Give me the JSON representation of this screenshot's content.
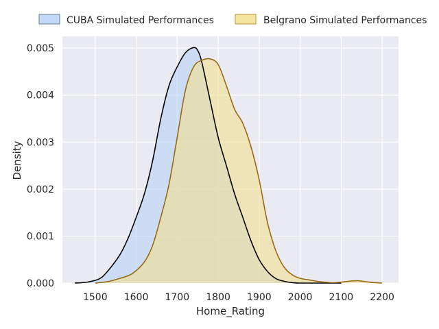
{
  "chart_data": {
    "type": "area",
    "subtype": "kde-density",
    "title": "",
    "xlabel": "Home_Rating",
    "ylabel": "Density",
    "xlim": [
      1420,
      2240
    ],
    "ylim": [
      0,
      0.00525
    ],
    "x_ticks": [
      1500,
      1600,
      1700,
      1800,
      1900,
      2000,
      2100,
      2200
    ],
    "y_ticks": [
      0.0,
      0.001,
      0.002,
      0.003,
      0.004,
      0.005
    ],
    "y_tick_labels": [
      "0.000",
      "0.001",
      "0.002",
      "0.003",
      "0.004",
      "0.005"
    ],
    "grid": true,
    "legend_position": "top",
    "series": [
      {
        "name": "CUBA Simulated Performances",
        "fill_color": "#b7d2f7",
        "line_color": "#000000",
        "x": [
          1450,
          1480,
          1510,
          1530,
          1560,
          1580,
          1600,
          1620,
          1640,
          1660,
          1680,
          1700,
          1720,
          1740,
          1750,
          1760,
          1780,
          1800,
          1820,
          1840,
          1860,
          1880,
          1900,
          1920,
          1940,
          1960,
          1980,
          2000,
          2030,
          2060,
          2100
        ],
        "y": [
          0,
          2e-05,
          9e-05,
          0.00025,
          0.0006,
          0.00095,
          0.0014,
          0.0019,
          0.0026,
          0.0035,
          0.0042,
          0.0046,
          0.0049,
          0.00501,
          0.00495,
          0.0047,
          0.0039,
          0.0031,
          0.0025,
          0.0019,
          0.0014,
          0.0009,
          0.0005,
          0.00025,
          0.0001,
          4e-05,
          1e-05,
          0,
          0,
          0,
          0
        ]
      },
      {
        "name": "Belgrano Simulated Performances",
        "fill_color": "#f2e08f",
        "line_color": "#9a6a14",
        "x": [
          1500,
          1530,
          1560,
          1590,
          1620,
          1640,
          1660,
          1680,
          1700,
          1720,
          1740,
          1760,
          1780,
          1800,
          1820,
          1840,
          1860,
          1880,
          1900,
          1920,
          1940,
          1960,
          1980,
          2000,
          2020,
          2040,
          2060,
          2080,
          2100,
          2120,
          2140,
          2160,
          2180,
          2200
        ],
        "y": [
          0,
          3e-05,
          0.0001,
          0.0002,
          0.00045,
          0.0008,
          0.0014,
          0.0021,
          0.0031,
          0.0041,
          0.0046,
          0.00474,
          0.00477,
          0.00465,
          0.0042,
          0.0037,
          0.0034,
          0.0029,
          0.0022,
          0.0013,
          0.0007,
          0.00035,
          0.00018,
          0.0001,
          7e-05,
          4e-05,
          2e-05,
          1e-05,
          2e-05,
          4e-05,
          5e-05,
          3e-05,
          1e-05,
          0
        ]
      }
    ]
  }
}
